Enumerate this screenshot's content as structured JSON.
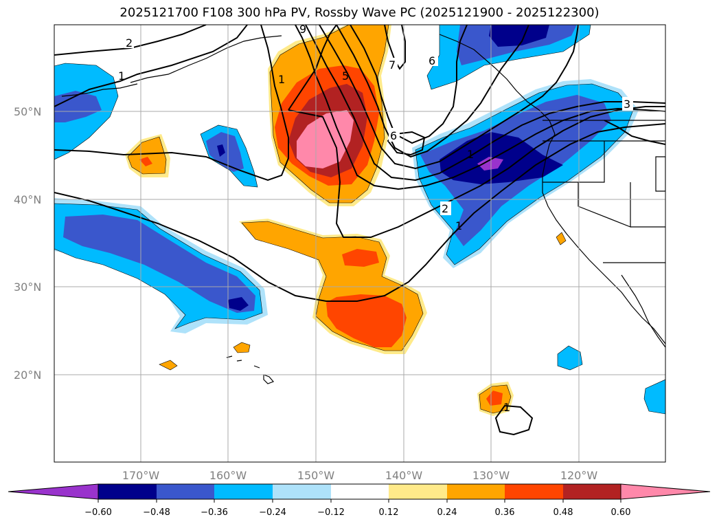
{
  "title": "2025121700 F108 300 hPa PV, Rossby Wave PC (2025121900 - 2025122300)",
  "map": {
    "lat_labels": [
      "20°N",
      "30°N",
      "40°N",
      "50°N"
    ],
    "lon_labels": [
      "170°W",
      "160°W",
      "150°W",
      "140°W",
      "130°W",
      "120°W"
    ]
  },
  "colorbar": {
    "tick_labels": [
      "−0.60",
      "−0.48",
      "−0.36",
      "−0.24",
      "−0.12",
      "0.12",
      "0.24",
      "0.36",
      "0.48",
      "0.60"
    ],
    "colors": [
      "#9933cc",
      "#00008b",
      "#3a57cc",
      "#00bbff",
      "#aee2fa",
      "#ffffff",
      "#ffea8a",
      "#ffa500",
      "#ff4500",
      "#b22222",
      "#ff88aa"
    ]
  },
  "contour_labels": [
    "2",
    "1",
    "1",
    "5",
    "7",
    "6",
    "6",
    "1",
    "3",
    "2",
    "1",
    "1",
    "9"
  ]
}
